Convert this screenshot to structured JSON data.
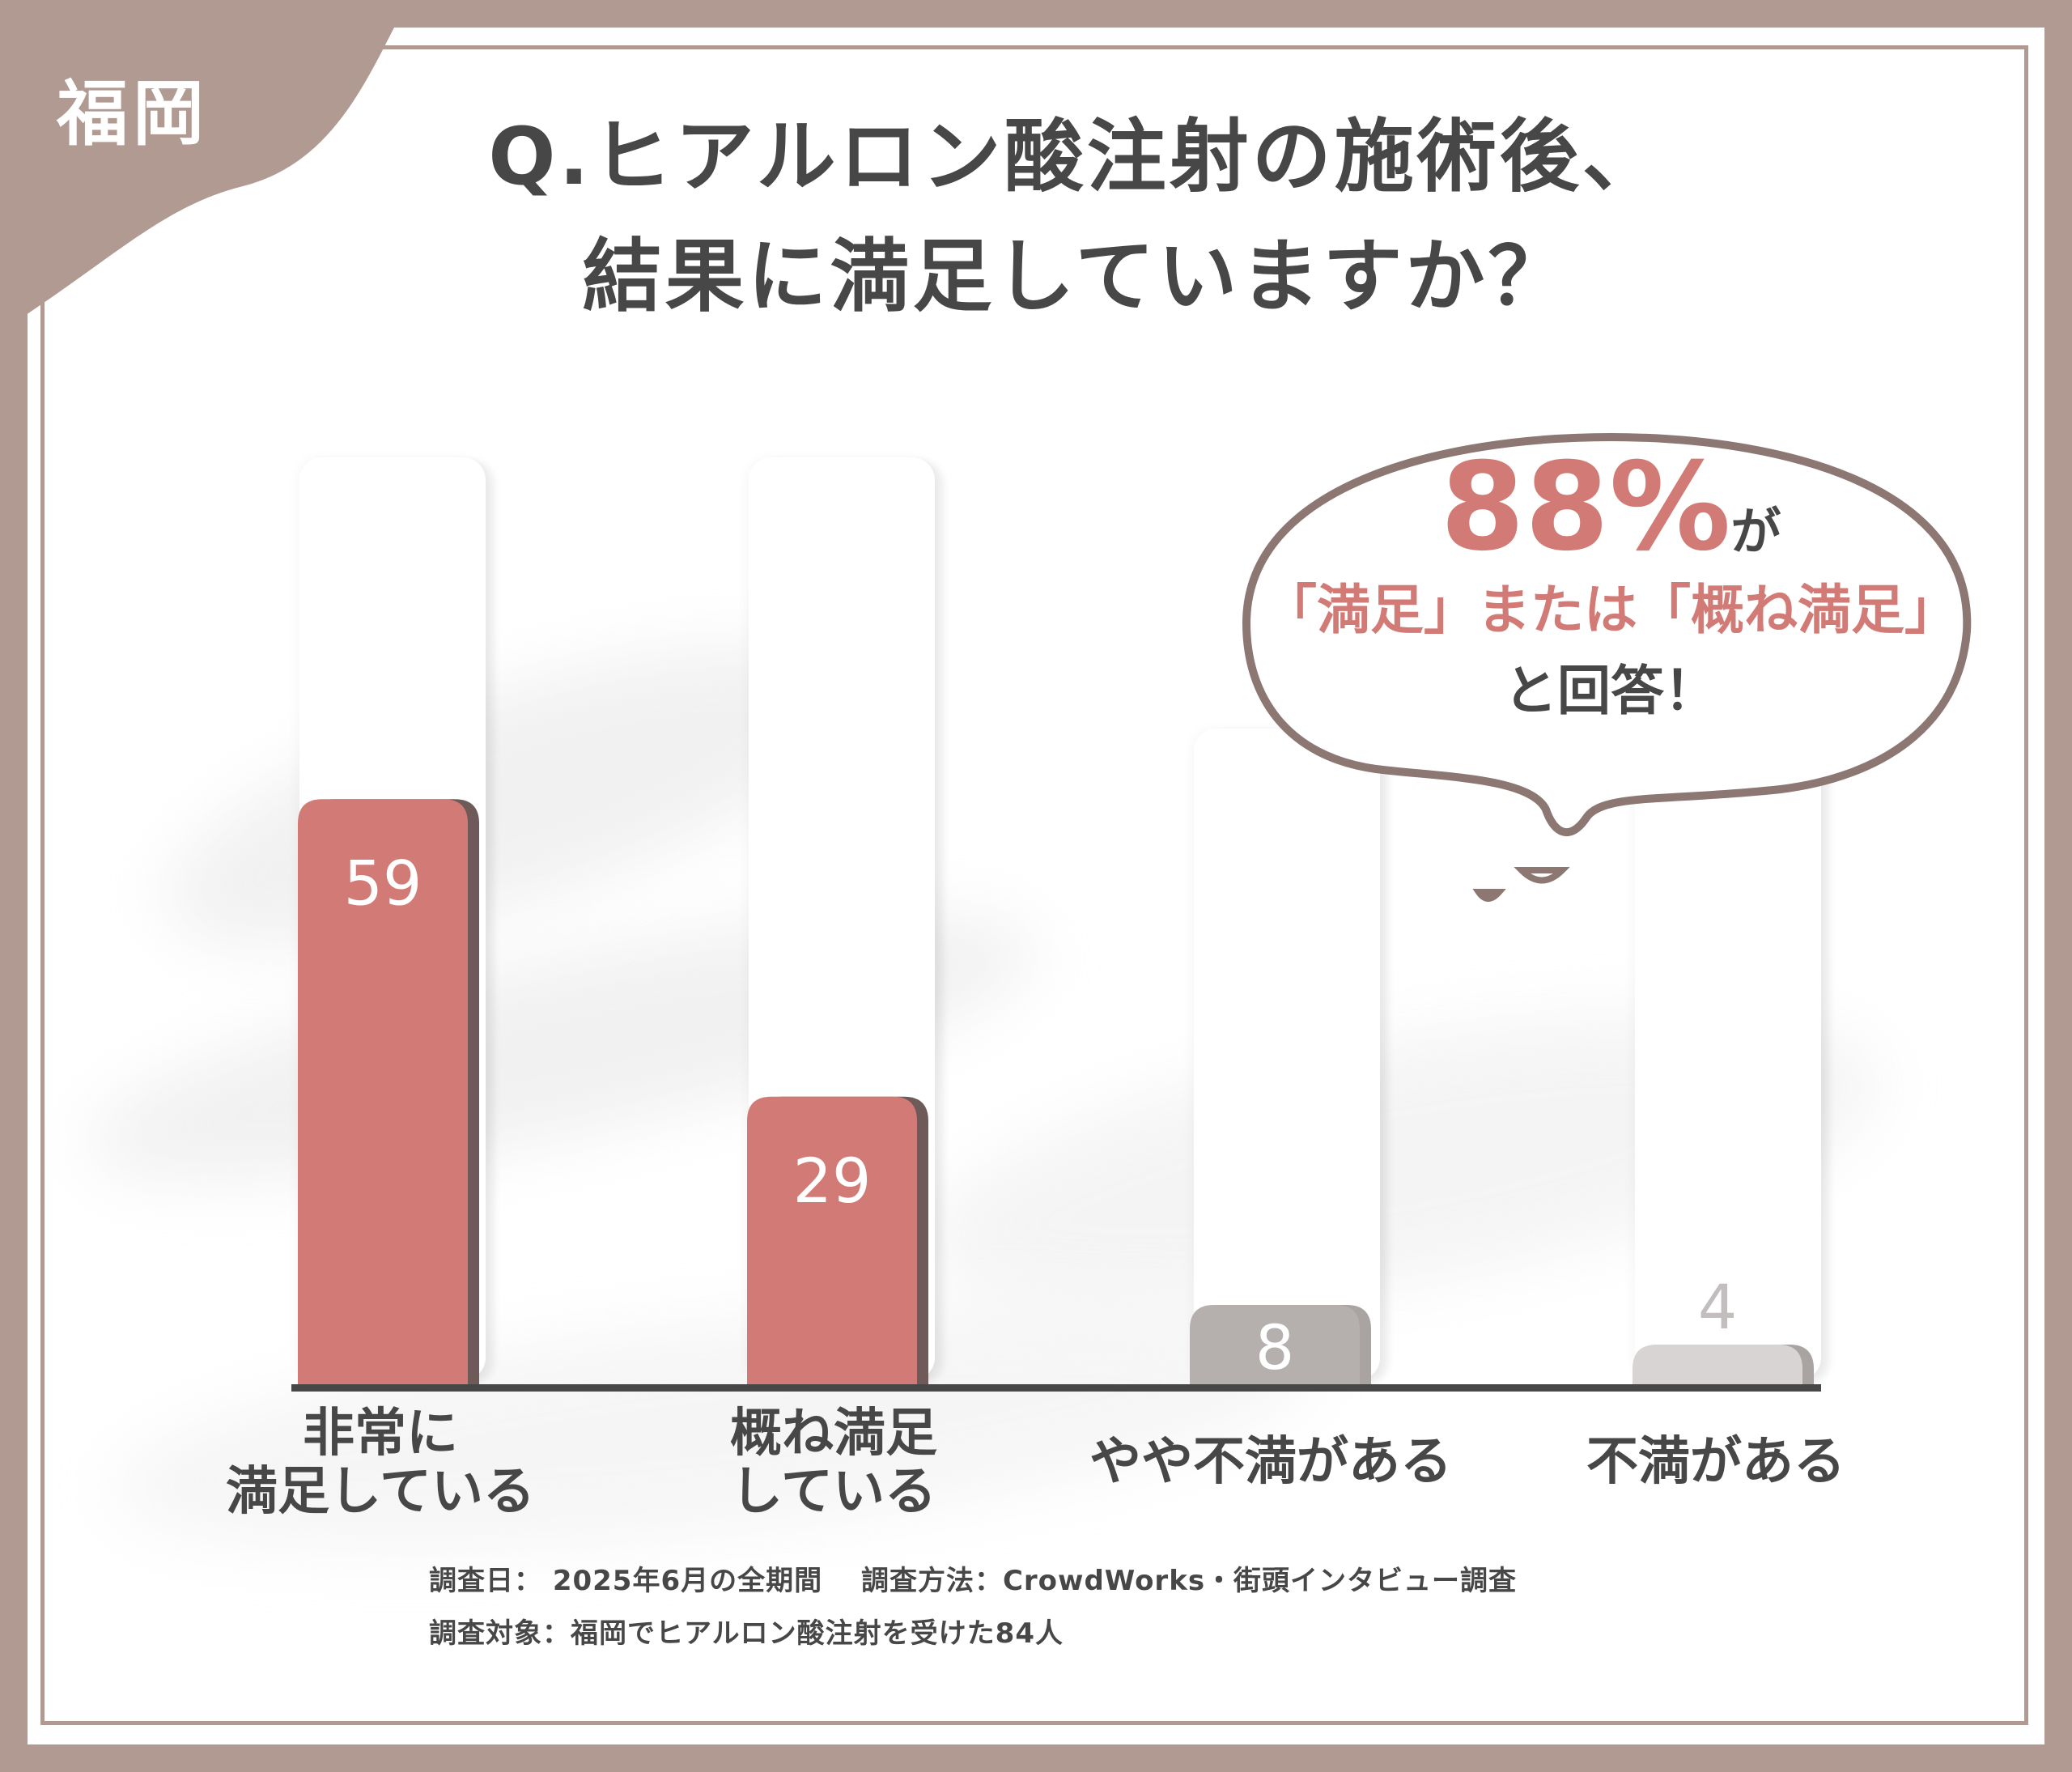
{
  "corner_label": "福岡",
  "title_lines": [
    "Q.ヒアルロン酸注射の施術後、",
    "結果に満足していますか？"
  ],
  "callout": {
    "percent": "88%",
    "percent_suffix": "が",
    "middle": "「満足」または「概ね満足」",
    "end": "と回答！"
  },
  "footnotes": [
    "調査日： 2025年6月の全期間 　調査方法：CrowdWorks・街頭インタビュー調査",
    "調査対象：福岡でヒアルロン酸注射を受けた84人"
  ],
  "colors": {
    "frame": "#b09a91",
    "highlight_bar": "#d27b76",
    "bar_shadow": "#6e5a58",
    "neutral_bar_1": "#b5b0ae",
    "neutral_bar_2": "#d7d4d3",
    "text": "#474747",
    "accent_text": "#d27b76"
  },
  "chart_data": {
    "type": "bar",
    "categories": [
      "非常に\n満足している",
      "概ね満足\nしている",
      "やや不満がある",
      "不満がある"
    ],
    "values": [
      59,
      29,
      8,
      4
    ],
    "data_labels": [
      "59",
      "29",
      "8",
      "4"
    ],
    "highlighted": [
      true,
      true,
      false,
      false
    ],
    "ylim": [
      0,
      80
    ],
    "grid": false,
    "legend": "none"
  }
}
